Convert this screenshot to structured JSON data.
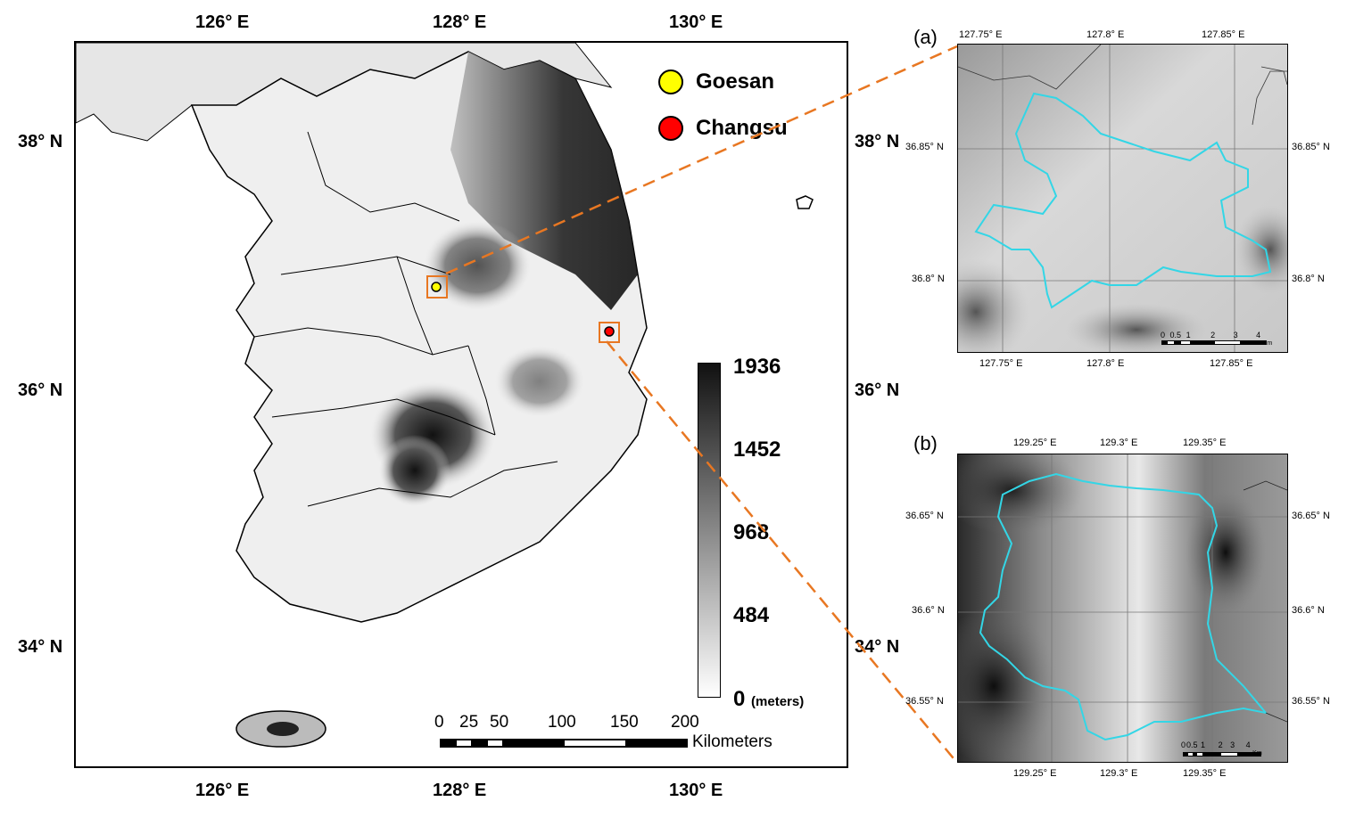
{
  "main_map": {
    "top_lon_labels": [
      "126° E",
      "128° E",
      "130° E"
    ],
    "bottom_lon_labels": [
      "126° E",
      "128° E",
      "130° E"
    ],
    "left_lat_labels": [
      "38° N",
      "36° N",
      "34° N"
    ],
    "right_lat_labels": [
      "38° N",
      "36° N",
      "34° N"
    ],
    "legend": [
      {
        "name": "Goesan",
        "color": "#ffff00"
      },
      {
        "name": "Changsu",
        "color": "#ff0000"
      }
    ],
    "colorbar": {
      "values": [
        "1936",
        "1452",
        "968",
        "484",
        "0"
      ],
      "unit": "(meters)",
      "range": [
        0,
        1936
      ]
    },
    "scalebar": {
      "ticks": [
        "0",
        "25",
        "50",
        "100",
        "150",
        "200"
      ],
      "unit": "Kilometers"
    }
  },
  "panel_a": {
    "tag": "(a)",
    "top_lon_labels": [
      "127.75° E",
      "127.8° E",
      "127.85° E"
    ],
    "bottom_lon_labels": [
      "127.75° E",
      "127.8° E",
      "127.85° E"
    ],
    "left_lat_labels": [
      "36.85° N",
      "36.8° N"
    ],
    "right_lat_labels": [
      "36.85° N",
      "36.8° N"
    ],
    "scalebar": {
      "ticks": [
        "0",
        "0.5",
        "1",
        "2",
        "3",
        "4"
      ],
      "unit": "Km"
    }
  },
  "panel_b": {
    "tag": "(b)",
    "top_lon_labels": [
      "129.25° E",
      "129.3° E",
      "129.35° E"
    ],
    "bottom_lon_labels": [
      "129.25° E",
      "129.3° E",
      "129.35° E"
    ],
    "left_lat_labels": [
      "36.65° N",
      "36.6° N",
      "36.55° N"
    ],
    "right_lat_labels": [
      "36.65° N",
      "36.6° N",
      "36.55° N"
    ],
    "scalebar": {
      "ticks": [
        "0",
        "0.5",
        "1",
        "2",
        "3",
        "4"
      ],
      "unit": "Km"
    }
  },
  "colors": {
    "callout": "#e87722",
    "watershed": "#33d6e6",
    "frame": "#000000"
  }
}
